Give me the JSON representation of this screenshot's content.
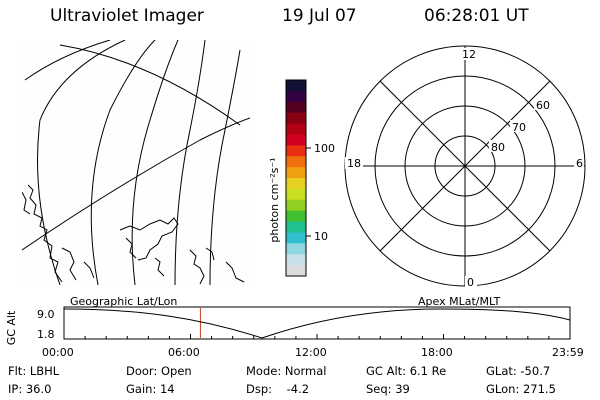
{
  "header": {
    "instrument": "Ultraviolet Imager",
    "date": "19 Jul 07",
    "time": "06:28:01 UT"
  },
  "colorbar": {
    "units": "photon cm⁻²s⁻¹",
    "tick_labels": [
      "100",
      "10"
    ],
    "colors": [
      "#111133",
      "#330044",
      "#550022",
      "#880011",
      "#b00011",
      "#d00020",
      "#e83010",
      "#f07010",
      "#f0a010",
      "#e8d020",
      "#c8e020",
      "#90d020",
      "#40c030",
      "#20c090",
      "#30c0d0",
      "#90d8e0",
      "#c8e0e8",
      "#dcdcdc"
    ]
  },
  "polar": {
    "hour_labels": [
      "12",
      "18",
      "6",
      "0"
    ],
    "lat_labels": [
      "60",
      "70",
      "80"
    ]
  },
  "timeline": {
    "axis_label": "GC Alt",
    "y_ticks": [
      "9.0",
      "1.8"
    ],
    "left_title": "Geographic Lat/Lon",
    "right_title": "Apex MLat/MLT",
    "x_ticks": [
      "00:00",
      "06:00",
      "12:00",
      "18:00",
      "23:59"
    ],
    "current_time_hours": 6.47,
    "current_color": "#c04020"
  },
  "status": {
    "flt": "Flt: LBHL",
    "ip": "IP: 36.0",
    "door": "Door: Open",
    "gain": "Gain: 14",
    "mode": "Mode: Normal",
    "dsp": "Dsp:    -4.2",
    "gcalt": "GC Alt: 6.1 Re",
    "seq": "Seq: 39",
    "glat": "GLat: -50.7",
    "glon": "GLon: 271.5"
  }
}
